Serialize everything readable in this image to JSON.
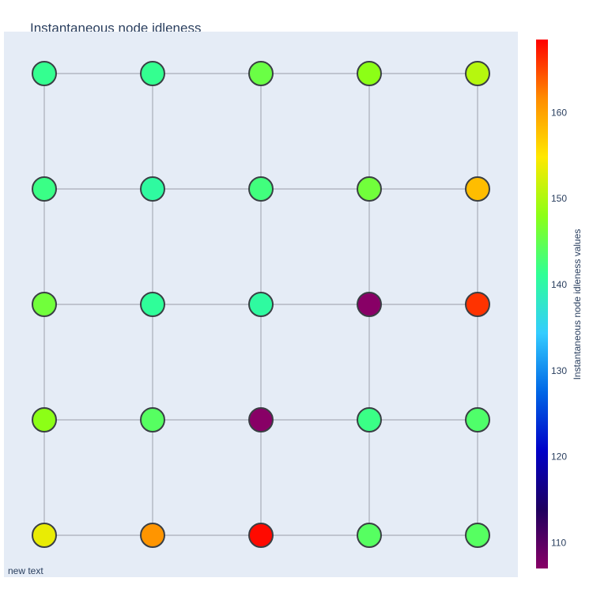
{
  "chart_data": {
    "type": "scatter",
    "title": "Instantaneous node idleness",
    "annotation": "new text",
    "grid": false,
    "colorscale": [
      "#880066",
      "#1f005f",
      "#0000c8",
      "#0066e6",
      "#33ccff",
      "#2fff96",
      "#8cff16",
      "#ffe800",
      "#ff8c00",
      "#ff0000"
    ],
    "colorbar": {
      "title": "Instantaneous node idleness values",
      "range": [
        107,
        168.5
      ],
      "ticks": [
        110,
        120,
        130,
        140,
        150,
        160
      ]
    },
    "grid_size": [
      5,
      5
    ],
    "x": [
      0,
      1,
      2,
      3,
      4
    ],
    "y": [
      0,
      1,
      2,
      3,
      4
    ],
    "nodes": [
      {
        "x": 0,
        "y": 4,
        "value": 141.5
      },
      {
        "x": 1,
        "y": 4,
        "value": 141.5
      },
      {
        "x": 2,
        "y": 4,
        "value": 145.5
      },
      {
        "x": 3,
        "y": 4,
        "value": 148
      },
      {
        "x": 4,
        "y": 4,
        "value": 150.5
      },
      {
        "x": 0,
        "y": 3,
        "value": 142
      },
      {
        "x": 1,
        "y": 3,
        "value": 140.5
      },
      {
        "x": 2,
        "y": 3,
        "value": 142.5
      },
      {
        "x": 3,
        "y": 3,
        "value": 146
      },
      {
        "x": 4,
        "y": 3,
        "value": 158
      },
      {
        "x": 0,
        "y": 2,
        "value": 146
      },
      {
        "x": 1,
        "y": 2,
        "value": 141
      },
      {
        "x": 2,
        "y": 2,
        "value": 140.5
      },
      {
        "x": 3,
        "y": 2,
        "value": 107
      },
      {
        "x": 4,
        "y": 2,
        "value": 166
      },
      {
        "x": 0,
        "y": 1,
        "value": 148
      },
      {
        "x": 1,
        "y": 1,
        "value": 144
      },
      {
        "x": 2,
        "y": 1,
        "value": 107
      },
      {
        "x": 3,
        "y": 1,
        "value": 142
      },
      {
        "x": 4,
        "y": 1,
        "value": 143.5
      },
      {
        "x": 0,
        "y": 0,
        "value": 153.5
      },
      {
        "x": 1,
        "y": 0,
        "value": 161
      },
      {
        "x": 2,
        "y": 0,
        "value": 168
      },
      {
        "x": 3,
        "y": 0,
        "value": 144
      },
      {
        "x": 4,
        "y": 0,
        "value": 144
      }
    ]
  }
}
